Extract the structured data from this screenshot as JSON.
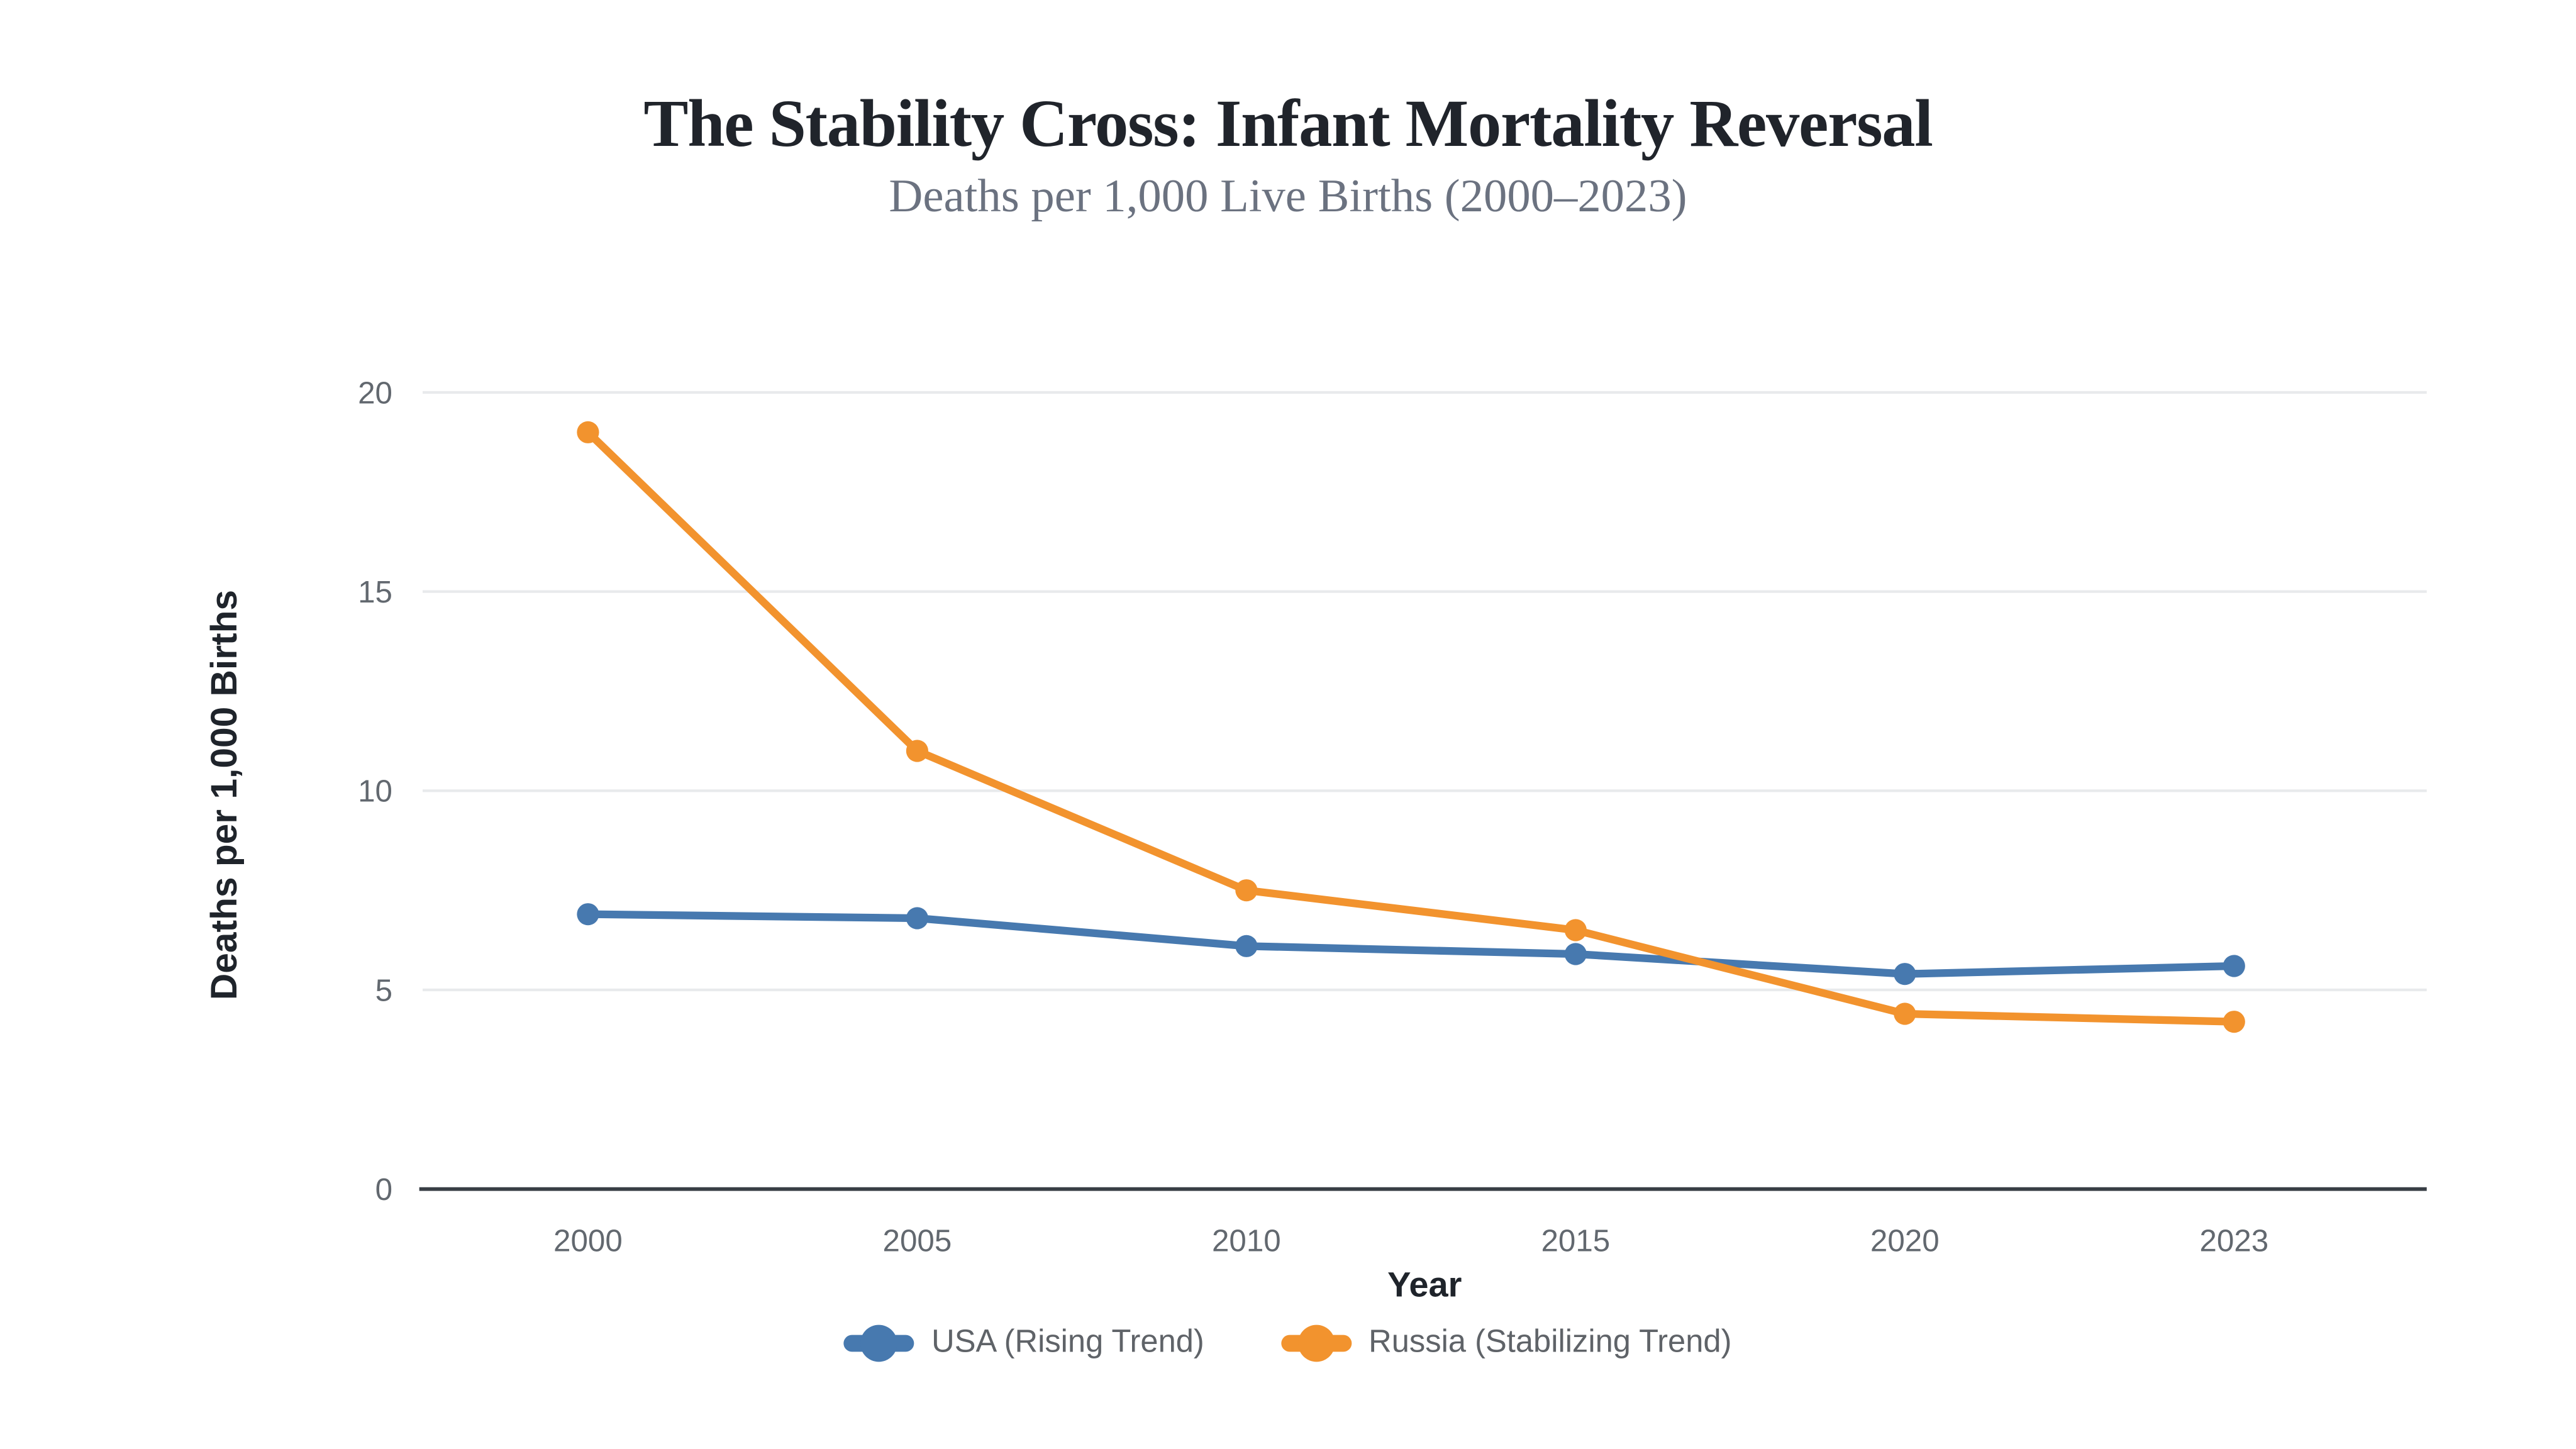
{
  "header": {
    "title": "The Stability Cross: Infant Mortality Reversal",
    "subtitle": "Deaths per 1,000 Live Births (2000–2023)"
  },
  "chart_data": {
    "type": "line",
    "categories": [
      "2000",
      "2005",
      "2010",
      "2015",
      "2020",
      "2023"
    ],
    "series": [
      {
        "name": "USA (Rising Trend)",
        "values": [
          6.9,
          6.8,
          6.1,
          5.9,
          5.4,
          5.6
        ],
        "color": "#4779AF"
      },
      {
        "name": "Russia (Stabilizing Trend)",
        "values": [
          19.0,
          11.0,
          7.5,
          6.5,
          4.4,
          4.2
        ],
        "color": "#F2932E"
      }
    ],
    "xlabel": "Year",
    "ylabel": "Deaths per 1,000 Births",
    "yticks": [
      0,
      5,
      10,
      15,
      20
    ],
    "ylim": [
      0,
      20
    ],
    "grid": "horizontal",
    "legend_position": "bottom",
    "colors": {
      "gridline": "#E8EAEC",
      "axis_line": "#383E45",
      "tick_label": "#62686F",
      "title": "#20242b",
      "subtitle": "#6b7280"
    }
  }
}
